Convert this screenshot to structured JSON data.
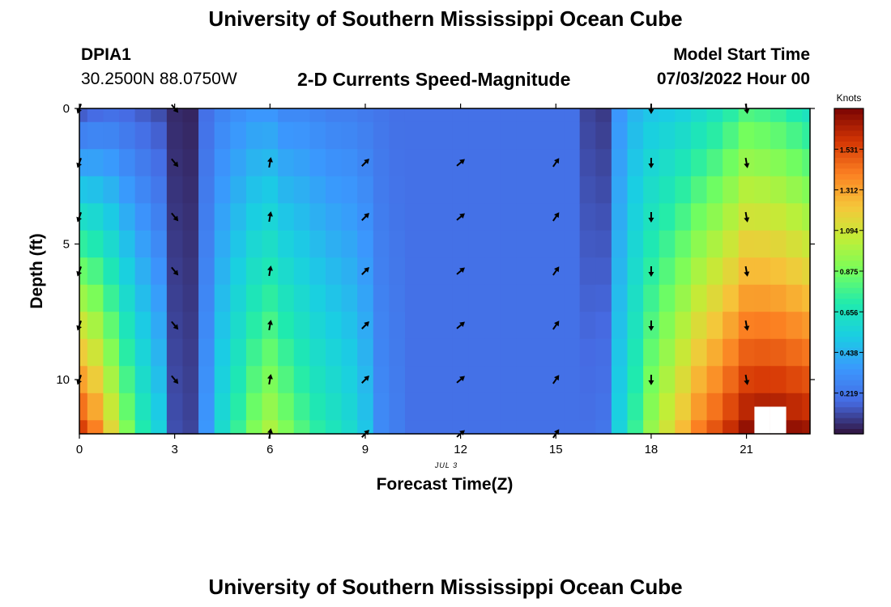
{
  "header": {
    "title": "University of Southern Mississippi Ocean Cube",
    "station_id": "DPIA1",
    "coords": "30.2500N  88.0750W",
    "plot_title": "2-D Currents Speed-Magnitude",
    "model_start_label": "Model Start Time",
    "model_start_value": "07/03/2022 Hour 00"
  },
  "footer": {
    "title": "University of Southern Mississippi Ocean Cube"
  },
  "colors": {
    "low": "#30123b",
    "mid": "#1ae4b6",
    "high": "#7a0403",
    "arrow": "#000000"
  },
  "chart_data": {
    "type": "heatmap",
    "xlabel": "Forecast Time(Z)",
    "ylabel": "Depth (ft)",
    "date_label": "JUL 3",
    "xlim": [
      0,
      23
    ],
    "ylim": [
      0,
      12
    ],
    "x_ticks": [
      "0",
      "3",
      "6",
      "9",
      "12",
      "15",
      "18",
      "21"
    ],
    "x_tick_values": [
      0,
      3,
      6,
      9,
      12,
      15,
      18,
      21
    ],
    "y_ticks": [
      "0",
      "5",
      "10"
    ],
    "y_tick_values": [
      0,
      5,
      10
    ],
    "colorbar": {
      "title": "Knots",
      "min": 0,
      "max": 1.75,
      "ticks": [
        "0.219",
        "0.438",
        "0.656",
        "0.875",
        "1.094",
        "1.312",
        "1.531"
      ],
      "tick_values": [
        0.219,
        0.438,
        0.656,
        0.875,
        1.094,
        1.312,
        1.531
      ]
    },
    "hours": [
      0,
      0.5,
      1,
      1.5,
      2,
      2.5,
      3,
      3.5,
      4,
      4.5,
      5,
      5.5,
      6,
      6.5,
      7,
      7.5,
      8,
      8.5,
      9,
      9.5,
      10,
      10.5,
      11,
      11.5,
      12,
      12.5,
      13,
      13.5,
      14,
      14.5,
      15,
      15.5,
      16,
      16.5,
      17,
      17.5,
      18,
      18.5,
      19,
      19.5,
      20,
      20.5,
      21,
      21.5,
      22,
      22.5,
      23
    ],
    "depths_ft": [
      0,
      1,
      2,
      3,
      4,
      5,
      6,
      7,
      8,
      9,
      10,
      11,
      12
    ],
    "profile": {
      "surface_knots": [
        0.15,
        0.18,
        0.2,
        0.18,
        0.15,
        0.12,
        0.05,
        0.04,
        0.2,
        0.28,
        0.32,
        0.35,
        0.35,
        0.3,
        0.3,
        0.28,
        0.26,
        0.26,
        0.24,
        0.22,
        0.2,
        0.2,
        0.2,
        0.2,
        0.2,
        0.2,
        0.2,
        0.2,
        0.2,
        0.2,
        0.2,
        0.2,
        0.1,
        0.08,
        0.35,
        0.45,
        0.5,
        0.52,
        0.55,
        0.6,
        0.65,
        0.72,
        0.8,
        0.78,
        0.75,
        0.7,
        0.65
      ],
      "bottom_knots": [
        1.55,
        1.4,
        1.15,
        0.9,
        0.7,
        0.55,
        0.12,
        0.1,
        0.35,
        0.6,
        0.75,
        0.9,
        1.0,
        0.9,
        0.8,
        0.72,
        0.66,
        0.6,
        0.5,
        0.3,
        0.25,
        0.2,
        0.2,
        0.2,
        0.2,
        0.2,
        0.2,
        0.2,
        0.2,
        0.2,
        0.2,
        0.2,
        0.2,
        0.22,
        0.55,
        0.75,
        0.95,
        1.1,
        1.25,
        1.4,
        1.5,
        1.6,
        1.7,
        1.72,
        1.72,
        1.7,
        1.68
      ],
      "shape_exponent": 1.0,
      "missing_cells": [
        [
          21.5,
          11.5
        ],
        [
          22,
          11.5
        ]
      ]
    },
    "arrows": [
      {
        "hour": 0,
        "depths": [
          0,
          2,
          4,
          6,
          8,
          10
        ],
        "dir_deg": 200
      },
      {
        "hour": 3,
        "depths": [
          0,
          2,
          4,
          6,
          8,
          10
        ],
        "dir_deg": 140
      },
      {
        "hour": 6,
        "depths": [
          2,
          4,
          6,
          8,
          10,
          12
        ],
        "dir_deg": 10
      },
      {
        "hour": 9,
        "depths": [
          2,
          4,
          6,
          8,
          10,
          12
        ],
        "dir_deg": 45
      },
      {
        "hour": 12,
        "depths": [
          2,
          4,
          6,
          8,
          10,
          12
        ],
        "dir_deg": 50
      },
      {
        "hour": 15,
        "depths": [
          2,
          4,
          6,
          8,
          10,
          12
        ],
        "dir_deg": 35
      },
      {
        "hour": 18,
        "depths": [
          0,
          2,
          4,
          6,
          8,
          10
        ],
        "dir_deg": 180
      },
      {
        "hour": 21,
        "depths": [
          0,
          2,
          4,
          6,
          8,
          10
        ],
        "dir_deg": 170
      }
    ]
  }
}
